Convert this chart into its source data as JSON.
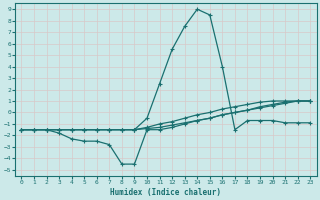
{
  "xlabel": "Humidex (Indice chaleur)",
  "background_color": "#cce9e9",
  "grid_color": "#e8e8e8",
  "line_color": "#1a7070",
  "xlim": [
    -0.5,
    23.5
  ],
  "ylim": [
    -5.5,
    9.5
  ],
  "xticks": [
    0,
    1,
    2,
    3,
    4,
    5,
    6,
    7,
    8,
    9,
    10,
    11,
    12,
    13,
    14,
    15,
    16,
    17,
    18,
    19,
    20,
    21,
    22,
    23
  ],
  "yticks": [
    -5,
    -4,
    -3,
    -2,
    -1,
    0,
    1,
    2,
    3,
    4,
    5,
    6,
    7,
    8,
    9
  ],
  "series": [
    {
      "x": [
        0,
        1,
        2,
        3,
        4,
        5,
        6,
        7,
        8,
        9,
        10,
        11,
        12,
        13,
        14,
        15,
        16,
        17,
        18,
        19,
        20,
        21,
        22,
        23
      ],
      "y": [
        -1.5,
        -1.5,
        -1.5,
        -1.5,
        -1.5,
        -1.5,
        -1.5,
        -1.5,
        -1.5,
        -1.5,
        -0.5,
        2.5,
        5.5,
        7.5,
        9.0,
        8.5,
        4.0,
        -1.5,
        -0.7,
        -0.7,
        -0.7,
        -0.9,
        -0.9,
        -0.9
      ]
    },
    {
      "x": [
        0,
        1,
        2,
        3,
        4,
        5,
        6,
        7,
        8,
        9,
        10,
        11,
        12,
        13,
        14,
        15,
        16,
        17,
        18,
        19,
        20,
        21,
        22,
        23
      ],
      "y": [
        -1.5,
        -1.5,
        -1.5,
        -1.5,
        -1.5,
        -1.5,
        -1.5,
        -1.5,
        -1.5,
        -1.5,
        -1.3,
        -1.0,
        -0.8,
        -0.5,
        -0.2,
        0.0,
        0.3,
        0.5,
        0.7,
        0.9,
        1.0,
        1.0,
        1.0,
        1.0
      ]
    },
    {
      "x": [
        0,
        1,
        2,
        3,
        4,
        5,
        6,
        7,
        8,
        9,
        10,
        11,
        12,
        13,
        14,
        15,
        16,
        17,
        18,
        19,
        20,
        21,
        22,
        23
      ],
      "y": [
        -1.5,
        -1.5,
        -1.5,
        -1.8,
        -2.3,
        -2.5,
        -2.5,
        -2.8,
        -4.5,
        -4.5,
        -1.5,
        -1.5,
        -1.3,
        -1.0,
        -0.7,
        -0.5,
        -0.2,
        0.0,
        0.2,
        0.5,
        0.7,
        0.9,
        1.0,
        1.0
      ]
    },
    {
      "x": [
        0,
        1,
        2,
        3,
        4,
        5,
        6,
        7,
        8,
        9,
        10,
        11,
        12,
        13,
        14,
        15,
        16,
        17,
        18,
        19,
        20,
        21,
        22,
        23
      ],
      "y": [
        -1.5,
        -1.5,
        -1.5,
        -1.5,
        -1.5,
        -1.5,
        -1.5,
        -1.5,
        -1.5,
        -1.5,
        -1.4,
        -1.3,
        -1.1,
        -0.9,
        -0.7,
        -0.5,
        -0.2,
        0.0,
        0.2,
        0.4,
        0.6,
        0.8,
        1.0,
        1.0
      ]
    }
  ]
}
